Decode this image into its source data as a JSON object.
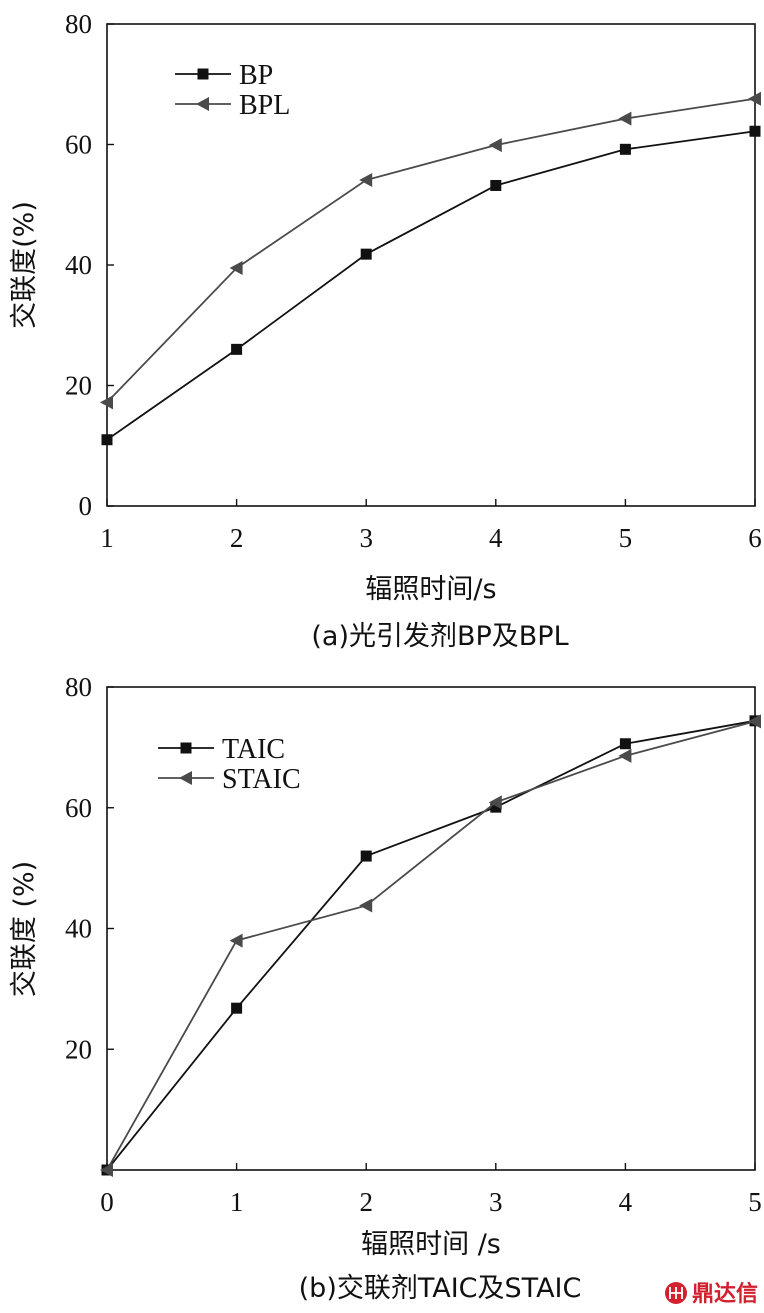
{
  "chart_data": [
    {
      "type": "line",
      "x": [
        1,
        2,
        3,
        4,
        5,
        6
      ],
      "xlim": [
        1,
        6
      ],
      "ylim": [
        0,
        80
      ],
      "xticks": [
        "1",
        "2",
        "3",
        "4",
        "5",
        "6"
      ],
      "yticks": [
        "0",
        "20",
        "40",
        "60",
        "80"
      ],
      "xlabel": "辐照时间/s",
      "ylabel": "交联度(%)",
      "caption": "(a)光引发剂BP及BPL",
      "legend_position": "top-left",
      "grid": false,
      "series": [
        {
          "name": "BP",
          "marker": "square",
          "color": "#111111",
          "values": [
            11,
            26,
            41.8,
            53.2,
            59.2,
            62.2
          ]
        },
        {
          "name": "BPL",
          "marker": "triangle-left",
          "color": "#4a4a4a",
          "values": [
            17.2,
            39.5,
            54.1,
            59.9,
            64.3,
            67.6
          ]
        }
      ]
    },
    {
      "type": "line",
      "x": [
        0,
        1,
        2,
        3,
        4,
        5
      ],
      "xlim": [
        0,
        5
      ],
      "ylim": [
        0,
        80
      ],
      "xticks": [
        "0",
        "1",
        "2",
        "3",
        "4",
        "5"
      ],
      "yticks": [
        "20",
        "40",
        "60",
        "80"
      ],
      "xlabel": "辐照时间 /s",
      "ylabel": "交联度 (%)",
      "caption": "(b)交联剂TAIC及STAIC",
      "legend_position": "top-left",
      "grid": false,
      "series": [
        {
          "name": "TAIC",
          "marker": "square",
          "color": "#111111",
          "values": [
            0,
            26.8,
            52.0,
            60.1,
            70.6,
            74.4
          ]
        },
        {
          "name": "STAIC",
          "marker": "triangle-left",
          "color": "#4a4a4a",
          "values": [
            0,
            38.0,
            43.8,
            60.9,
            68.6,
            74.3
          ]
        }
      ]
    }
  ],
  "watermark": {
    "text": "鼎达信",
    "logo": "company-logo"
  }
}
